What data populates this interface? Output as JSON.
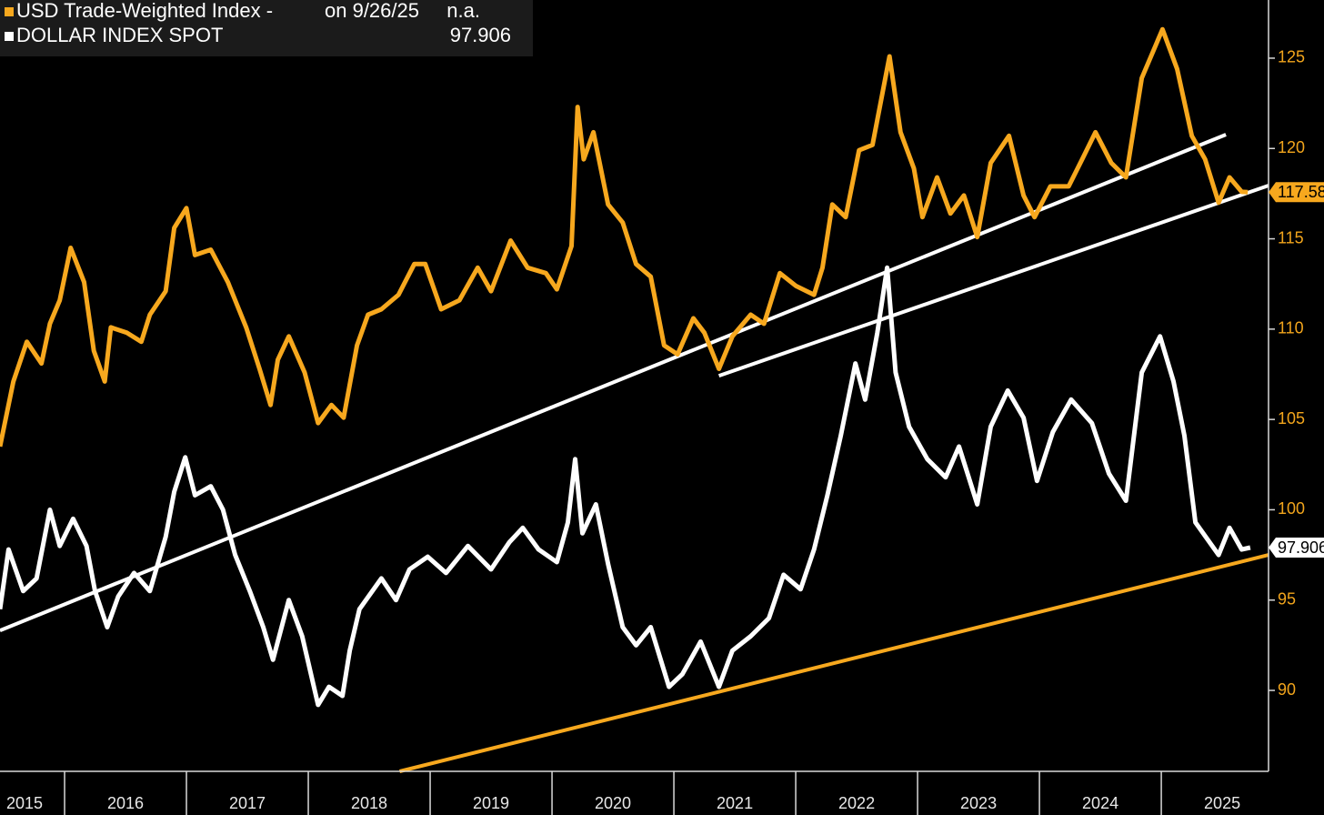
{
  "chart_data": {
    "type": "line",
    "legend_date": "on 9/26/25",
    "xlim": [
      2015.47,
      2025.88
    ],
    "ylim": [
      85.52,
      128.22
    ],
    "yticks": [
      90,
      95,
      100,
      105,
      110,
      115,
      120,
      125
    ],
    "xticks": [
      {
        "value": 2015.5,
        "label": "2015"
      },
      {
        "value": 2016.5,
        "label": "2016"
      },
      {
        "value": 2017.5,
        "label": "2017"
      },
      {
        "value": 2018.5,
        "label": "2018"
      },
      {
        "value": 2019.5,
        "label": "2019"
      },
      {
        "value": 2020.5,
        "label": "2020"
      },
      {
        "value": 2021.5,
        "label": "2021"
      },
      {
        "value": 2022.5,
        "label": "2022"
      },
      {
        "value": 2023.5,
        "label": "2023"
      },
      {
        "value": 2024.5,
        "label": "2024"
      },
      {
        "value": 2025.5,
        "label": "2025"
      }
    ],
    "series": [
      {
        "name": "USD Trade-Weighted Index -",
        "color": "#f7a81e",
        "legend_value": "n.a.",
        "last_label": "117.58",
        "x": [
          2015.47,
          2015.58,
          2015.69,
          2015.81,
          2015.88,
          2015.96,
          2016.05,
          2016.16,
          2016.24,
          2016.33,
          2016.38,
          2016.51,
          2016.63,
          2016.7,
          2016.83,
          2016.9,
          2017.0,
          2017.07,
          2017.2,
          2017.34,
          2017.49,
          2017.6,
          2017.69,
          2017.75,
          2017.84,
          2017.97,
          2018.08,
          2018.19,
          2018.29,
          2018.4,
          2018.49,
          2018.6,
          2018.74,
          2018.87,
          2018.96,
          2019.09,
          2019.24,
          2019.39,
          2019.5,
          2019.66,
          2019.8,
          2019.95,
          2020.04,
          2020.16,
          2020.21,
          2020.26,
          2020.34,
          2020.46,
          2020.58,
          2020.69,
          2020.81,
          2020.92,
          2021.03,
          2021.16,
          2021.25,
          2021.37,
          2021.48,
          2021.63,
          2021.74,
          2021.87,
          2022.0,
          2022.15,
          2022.22,
          2022.3,
          2022.41,
          2022.52,
          2022.63,
          2022.77,
          2022.86,
          2022.97,
          2023.04,
          2023.16,
          2023.27,
          2023.38,
          2023.49,
          2023.6,
          2023.75,
          2023.87,
          2023.96,
          2024.09,
          2024.24,
          2024.35,
          2024.46,
          2024.59,
          2024.71,
          2024.84,
          2025.01,
          2025.13,
          2025.25,
          2025.36,
          2025.47,
          2025.56,
          2025.66,
          2025.71
        ],
        "values": [
          103.5,
          107.1,
          109.3,
          108.1,
          110.3,
          111.6,
          114.5,
          112.6,
          108.8,
          107.1,
          110.1,
          109.8,
          109.3,
          110.8,
          112.1,
          115.6,
          116.7,
          114.1,
          114.4,
          112.6,
          110.1,
          107.8,
          105.8,
          108.3,
          109.6,
          107.6,
          104.8,
          105.8,
          105.1,
          109.1,
          110.8,
          111.1,
          111.9,
          113.6,
          113.6,
          111.1,
          111.6,
          113.4,
          112.1,
          114.9,
          113.4,
          113.1,
          112.2,
          114.6,
          122.3,
          119.4,
          120.9,
          116.9,
          115.9,
          113.6,
          112.9,
          109.1,
          108.6,
          110.6,
          109.8,
          107.8,
          109.6,
          110.8,
          110.3,
          113.1,
          112.4,
          111.9,
          113.4,
          116.9,
          116.2,
          119.9,
          120.2,
          125.1,
          120.9,
          118.9,
          116.2,
          118.4,
          116.4,
          117.4,
          115.1,
          119.2,
          120.7,
          117.4,
          116.2,
          117.9,
          117.9,
          119.4,
          120.9,
          119.2,
          118.4,
          123.9,
          126.6,
          124.4,
          120.7,
          119.4,
          117.0,
          118.4,
          117.6,
          117.58
        ]
      },
      {
        "name": "DOLLAR INDEX SPOT",
        "color": "#ffffff",
        "legend_value": 97.906,
        "last_label": "97.906",
        "x": [
          2015.47,
          2015.54,
          2015.66,
          2015.77,
          2015.88,
          2015.96,
          2016.07,
          2016.18,
          2016.25,
          2016.35,
          2016.44,
          2016.57,
          2016.7,
          2016.83,
          2016.9,
          2016.99,
          2017.07,
          2017.2,
          2017.3,
          2017.4,
          2017.52,
          2017.63,
          2017.71,
          2017.84,
          2017.95,
          2018.08,
          2018.17,
          2018.28,
          2018.34,
          2018.42,
          2018.6,
          2018.72,
          2018.83,
          2018.98,
          2019.13,
          2019.31,
          2019.5,
          2019.65,
          2019.76,
          2019.89,
          2020.04,
          2020.13,
          2020.19,
          2020.25,
          2020.36,
          2020.46,
          2020.58,
          2020.69,
          2020.81,
          2020.96,
          2021.07,
          2021.22,
          2021.37,
          2021.48,
          2021.63,
          2021.78,
          2021.9,
          2022.04,
          2022.15,
          2022.26,
          2022.37,
          2022.49,
          2022.57,
          2022.67,
          2022.75,
          2022.82,
          2022.93,
          2023.08,
          2023.23,
          2023.34,
          2023.49,
          2023.6,
          2023.74,
          2023.87,
          2023.98,
          2024.11,
          2024.26,
          2024.43,
          2024.57,
          2024.71,
          2024.84,
          2024.99,
          2025.1,
          2025.19,
          2025.28,
          2025.47,
          2025.56,
          2025.66,
          2025.73
        ],
        "values": [
          94.5,
          97.8,
          95.5,
          96.2,
          100.0,
          98.0,
          99.5,
          98.0,
          95.5,
          93.5,
          95.2,
          96.5,
          95.5,
          98.5,
          101.0,
          102.9,
          100.8,
          101.3,
          100.0,
          97.5,
          95.5,
          93.5,
          91.7,
          95.0,
          93.0,
          89.2,
          90.2,
          89.7,
          92.2,
          94.5,
          96.2,
          95.0,
          96.7,
          97.4,
          96.5,
          98.0,
          96.7,
          98.2,
          99.0,
          97.8,
          97.1,
          99.3,
          102.8,
          98.7,
          100.3,
          97.0,
          93.5,
          92.5,
          93.5,
          90.2,
          90.9,
          92.7,
          90.2,
          92.2,
          93.0,
          94.0,
          96.4,
          95.6,
          97.8,
          100.8,
          104.1,
          108.1,
          106.1,
          109.8,
          113.4,
          107.6,
          104.6,
          102.8,
          101.8,
          103.5,
          100.3,
          104.6,
          106.6,
          105.1,
          101.6,
          104.3,
          106.1,
          104.8,
          102.0,
          100.5,
          107.6,
          109.6,
          107.1,
          104.1,
          99.3,
          97.5,
          99.0,
          97.8,
          97.906
        ]
      }
    ],
    "trend_lines": [
      {
        "color": "#ffffff",
        "x": [
          2015.47,
          2025.53
        ],
        "values": [
          93.32,
          120.77
        ]
      },
      {
        "color": "#ffffff",
        "x": [
          2021.37,
          2025.88
        ],
        "values": [
          107.42,
          117.95
        ]
      },
      {
        "color": "#f7a81e",
        "x": [
          2018.75,
          2025.88
        ],
        "values": [
          85.52,
          97.5
        ]
      }
    ]
  }
}
